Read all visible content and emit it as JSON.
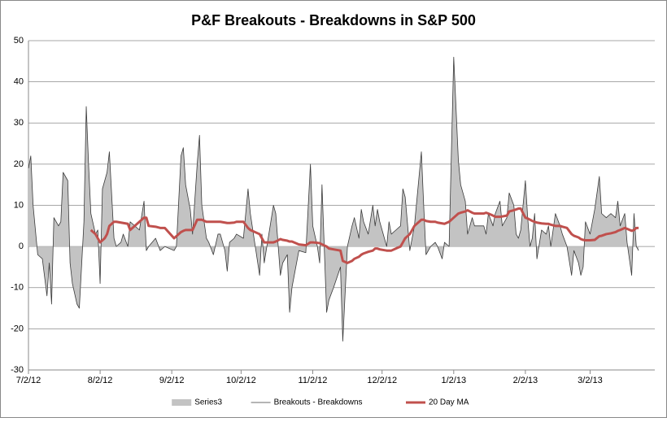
{
  "chart_data": {
    "type": "area",
    "title": "P&F Breakouts - Breakdowns in S&P 500",
    "x": [
      "2012-07-02",
      "2012-07-03",
      "2012-07-04",
      "2012-07-06",
      "2012-07-08",
      "2012-07-10",
      "2012-07-11",
      "2012-07-12",
      "2012-07-13",
      "2012-07-15",
      "2012-07-16",
      "2012-07-17",
      "2012-07-19",
      "2012-07-20",
      "2012-07-21",
      "2012-07-23",
      "2012-07-24",
      "2012-07-26",
      "2012-07-27",
      "2012-07-28",
      "2012-07-29",
      "2012-07-31",
      "2012-08-01",
      "2012-08-02",
      "2012-08-03",
      "2012-08-04",
      "2012-08-05",
      "2012-08-06",
      "2012-08-08",
      "2012-08-09",
      "2012-08-11",
      "2012-08-12",
      "2012-08-14",
      "2012-08-15",
      "2012-08-17",
      "2012-08-19",
      "2012-08-21",
      "2012-08-22",
      "2012-08-23",
      "2012-08-26",
      "2012-08-28",
      "2012-08-30",
      "2012-09-03",
      "2012-09-04",
      "2012-09-06",
      "2012-09-07",
      "2012-09-08",
      "2012-09-10",
      "2012-09-11",
      "2012-09-13",
      "2012-09-14",
      "2012-09-15",
      "2012-09-17",
      "2012-09-18",
      "2012-09-20",
      "2012-09-22",
      "2012-09-23",
      "2012-09-25",
      "2012-09-26",
      "2012-09-27",
      "2012-09-29",
      "2012-09-30",
      "2012-10-03",
      "2012-10-05",
      "2012-10-06",
      "2012-10-10",
      "2012-10-11",
      "2012-10-12",
      "2012-10-16",
      "2012-10-17",
      "2012-10-19",
      "2012-10-20",
      "2012-10-22",
      "2012-10-23",
      "2012-10-24",
      "2012-10-27",
      "2012-10-30",
      "2012-11-01",
      "2012-11-02",
      "2012-11-04",
      "2012-11-05",
      "2012-11-06",
      "2012-11-08",
      "2012-11-09",
      "2012-11-11",
      "2012-11-14",
      "2012-11-15",
      "2012-11-17",
      "2012-11-19",
      "2012-11-20",
      "2012-11-22",
      "2012-11-23",
      "2012-11-24",
      "2012-11-26",
      "2012-11-28",
      "2012-11-29",
      "2012-11-30",
      "2012-12-01",
      "2012-12-04",
      "2012-12-05",
      "2012-12-06",
      "2012-12-08",
      "2012-12-10",
      "2012-12-11",
      "2012-12-12",
      "2012-12-14",
      "2012-12-16",
      "2012-12-19",
      "2012-12-20",
      "2012-12-21",
      "2012-12-23",
      "2012-12-25",
      "2012-12-26",
      "2012-12-28",
      "2012-12-29",
      "2012-12-31",
      "2013-01-02",
      "2013-01-04",
      "2013-01-05",
      "2013-01-07",
      "2013-01-08",
      "2013-01-10",
      "2013-01-11",
      "2013-01-13",
      "2013-01-15",
      "2013-01-16",
      "2013-01-17",
      "2013-01-19",
      "2013-01-20",
      "2013-01-22",
      "2013-01-23",
      "2013-01-25",
      "2013-01-26",
      "2013-01-28",
      "2013-01-29",
      "2013-01-30",
      "2013-01-31",
      "2013-02-02",
      "2013-02-03",
      "2013-02-04",
      "2013-02-05",
      "2013-02-06",
      "2013-02-07",
      "2013-02-09",
      "2013-02-11",
      "2013-02-12",
      "2013-02-13",
      "2013-02-15",
      "2013-02-17",
      "2013-02-18",
      "2013-02-20",
      "2013-02-22",
      "2013-02-23",
      "2013-02-25",
      "2013-02-26",
      "2013-02-27",
      "2013-02-28",
      "2013-03-02",
      "2013-03-04",
      "2013-03-06",
      "2013-03-07",
      "2013-03-09",
      "2013-03-11",
      "2013-03-13",
      "2013-03-14",
      "2013-03-15",
      "2013-03-17",
      "2013-03-18",
      "2013-03-20",
      "2013-03-21",
      "2013-03-22",
      "2013-03-23"
    ],
    "series": [
      {
        "name": "Series3",
        "type": "area",
        "color": "#c3c3c3",
        "values": [
          19,
          22,
          10,
          -2,
          -3,
          -12,
          -4,
          -14,
          7,
          5,
          6,
          18,
          16,
          -4,
          -9,
          -14,
          -15,
          6,
          34,
          20,
          8,
          3,
          4,
          -9,
          14,
          16,
          18,
          23,
          2,
          0,
          1,
          3,
          0,
          6,
          5,
          4,
          11,
          -1,
          0,
          2,
          -1,
          0,
          -1,
          0,
          22,
          24,
          15,
          9,
          3,
          20,
          27,
          10,
          2,
          1,
          -2,
          3,
          3,
          -1,
          -6,
          1,
          2,
          3,
          2,
          14,
          8,
          -7,
          3,
          -4,
          10,
          8,
          -7,
          -4,
          -2,
          -16,
          -10,
          -1,
          -1.5,
          20,
          5,
          0,
          -4,
          15,
          -16,
          -13,
          -10,
          -5,
          -23,
          0,
          5,
          7,
          2,
          9,
          6,
          3,
          10,
          5,
          9,
          6,
          0,
          6,
          3,
          4,
          5,
          14,
          12,
          -1,
          5,
          23,
          10,
          -2,
          0,
          1,
          0,
          -3,
          1,
          0,
          46,
          21,
          15,
          11,
          3,
          7,
          5,
          5,
          5,
          3,
          8,
          5,
          8,
          11,
          5,
          7,
          13,
          10,
          3,
          2,
          4,
          16,
          7,
          0,
          2,
          8,
          -3,
          4,
          3,
          5,
          0,
          8,
          5,
          3,
          0,
          -7,
          -1,
          -4,
          -7,
          -5,
          6,
          3,
          9,
          17,
          8,
          7,
          8,
          7,
          11,
          5,
          8,
          1,
          -7,
          8,
          0,
          -1
        ]
      },
      {
        "name": "Breakouts - Breakdowns",
        "type": "line",
        "color": "#3a3a3a",
        "width": 0.8,
        "values": [
          19,
          22,
          10,
          -2,
          -3,
          -12,
          -4,
          -14,
          7,
          5,
          6,
          18,
          16,
          -4,
          -9,
          -14,
          -15,
          6,
          34,
          20,
          8,
          3,
          4,
          -9,
          14,
          16,
          18,
          23,
          2,
          0,
          1,
          3,
          0,
          6,
          5,
          4,
          11,
          -1,
          0,
          2,
          -1,
          0,
          -1,
          0,
          22,
          24,
          15,
          9,
          3,
          20,
          27,
          10,
          2,
          1,
          -2,
          3,
          3,
          -1,
          -6,
          1,
          2,
          3,
          2,
          14,
          8,
          -7,
          3,
          -4,
          10,
          8,
          -7,
          -4,
          -2,
          -16,
          -10,
          -1,
          -1.5,
          20,
          5,
          0,
          -4,
          15,
          -16,
          -13,
          -10,
          -5,
          -23,
          0,
          5,
          7,
          2,
          9,
          6,
          3,
          10,
          5,
          9,
          6,
          0,
          6,
          3,
          4,
          5,
          14,
          12,
          -1,
          5,
          23,
          10,
          -2,
          0,
          1,
          0,
          -3,
          1,
          0,
          46,
          21,
          15,
          11,
          3,
          7,
          5,
          5,
          5,
          3,
          8,
          5,
          8,
          11,
          5,
          7,
          13,
          10,
          3,
          2,
          4,
          16,
          7,
          0,
          2,
          8,
          -3,
          4,
          3,
          5,
          0,
          8,
          5,
          3,
          0,
          -7,
          -1,
          -4,
          -7,
          -5,
          6,
          3,
          9,
          17,
          8,
          7,
          8,
          7,
          11,
          5,
          8,
          1,
          -7,
          8,
          0,
          -1
        ]
      },
      {
        "name": "20 Day MA",
        "type": "line",
        "color": "#c0504d",
        "width": 3,
        "values": [
          null,
          null,
          null,
          null,
          null,
          null,
          null,
          null,
          null,
          null,
          null,
          null,
          null,
          null,
          null,
          null,
          null,
          null,
          null,
          null,
          4,
          3,
          2,
          1,
          1.5,
          2,
          3,
          5,
          6,
          6,
          5.8,
          5.7,
          5.5,
          4,
          5,
          6,
          7,
          7,
          5,
          4.8,
          4.5,
          4.5,
          2,
          2.5,
          3.5,
          3.8,
          4,
          4,
          4,
          6.5,
          6.5,
          6.5,
          6,
          6,
          6,
          6,
          6,
          5.8,
          5.7,
          5.7,
          5.8,
          6,
          6,
          4.5,
          4,
          3,
          2,
          1,
          1,
          1.2,
          1.8,
          1.6,
          1.4,
          1.2,
          1.2,
          0.5,
          0.3,
          1,
          1,
          0.9,
          0.8,
          0.5,
          0,
          -0.5,
          -0.7,
          -1,
          -3.5,
          -4,
          -3.5,
          -3,
          -2.5,
          -2,
          -1.7,
          -1.3,
          -1,
          -0.5,
          -0.5,
          -0.7,
          -1,
          -1,
          -1,
          -0.5,
          0,
          1,
          2,
          3,
          5,
          6.5,
          6.5,
          6.2,
          6,
          6,
          5.8,
          5.6,
          5.5,
          6,
          7,
          8,
          8.2,
          8.5,
          8.8,
          8.2,
          8,
          8,
          8,
          8.2,
          8,
          7.5,
          7.2,
          7.2,
          7.3,
          7.5,
          8.5,
          8.8,
          9,
          9.2,
          9.2,
          7,
          6.8,
          6.5,
          6.2,
          6,
          5.8,
          5.6,
          5.5,
          5.5,
          5.3,
          5,
          5,
          4.8,
          4.5,
          3,
          2.6,
          2.2,
          1.8,
          1.6,
          1.5,
          1.5,
          1.6,
          2.5,
          2.6,
          3,
          3.2,
          3.5,
          3.8,
          4,
          4.5,
          4.3,
          3.8,
          4,
          4.5,
          4.5
        ]
      }
    ],
    "xlim": [
      "2012-07-02",
      "2013-03-30"
    ],
    "xticks": [
      {
        "value": "2012-07-02",
        "label": "7/2/12"
      },
      {
        "value": "2012-08-02",
        "label": "8/2/12"
      },
      {
        "value": "2012-09-02",
        "label": "9/2/12"
      },
      {
        "value": "2012-10-02",
        "label": "10/2/12"
      },
      {
        "value": "2012-11-02",
        "label": "11/2/12"
      },
      {
        "value": "2012-12-02",
        "label": "12/2/12"
      },
      {
        "value": "2013-01-02",
        "label": "1/2/13"
      },
      {
        "value": "2013-02-02",
        "label": "2/2/13"
      },
      {
        "value": "2013-03-02",
        "label": "3/2/13"
      }
    ],
    "ylim": [
      -30,
      50
    ],
    "yticks": [
      -30,
      -20,
      -10,
      0,
      10,
      20,
      30,
      40,
      50
    ],
    "grid": true,
    "legend": "bottom"
  }
}
